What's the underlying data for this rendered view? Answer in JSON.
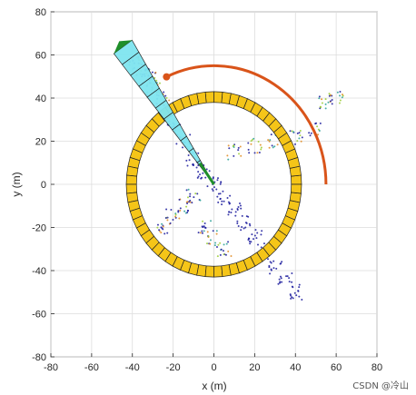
{
  "chart_data": {
    "type": "scatter",
    "xlabel": "x (m)",
    "ylabel": "y (m)",
    "xlim": [
      -80,
      80
    ],
    "ylim": [
      -80,
      80
    ],
    "xticks": [
      -80,
      -60,
      -40,
      -20,
      0,
      20,
      40,
      60,
      80
    ],
    "yticks": [
      -80,
      -60,
      -40,
      -20,
      0,
      20,
      40,
      60,
      80
    ],
    "grid": true,
    "ring": {
      "center": [
        0,
        0
      ],
      "inner_radius": 38,
      "outer_radius": 43,
      "sectors": 64,
      "color": "#f5c518"
    },
    "beam": {
      "azimuth_deg": 125,
      "half_width_deg": 4,
      "range_start": 0,
      "range_end": 78,
      "range_bins": 12,
      "color": "#7fe5f0",
      "highlight_start": 22,
      "highlight_end": 27,
      "highlight_color": "#000000",
      "tip_color": "#1f8f2a"
    },
    "scan_arc": {
      "radius": 55,
      "start_deg": 0,
      "end_deg": 115,
      "color": "#d9541a"
    },
    "point_cloud_clusters": [
      {
        "name": "",
        "points": [
          [
            -20,
            28
          ],
          [
            -15,
            20
          ],
          [
            -10,
            12
          ],
          [
            -5,
            6
          ],
          [
            0,
            0
          ],
          [
            5,
            -6
          ],
          [
            10,
            -12
          ],
          [
            15,
            -18
          ],
          [
            20,
            -24
          ],
          [
            25,
            -30
          ],
          [
            30,
            -38
          ],
          [
            35,
            -44
          ],
          [
            40,
            -50
          ]
        ]
      },
      {
        "name": "",
        "points": [
          [
            -35,
            50
          ],
          [
            -30,
            44
          ],
          [
            -25,
            38
          ],
          [
            -28,
            45
          ],
          [
            -32,
            52
          ],
          [
            -38,
            56
          ]
        ]
      },
      {
        "name": "",
        "points": [
          [
            10,
            15
          ],
          [
            20,
            18
          ],
          [
            30,
            20
          ],
          [
            40,
            22
          ],
          [
            50,
            25
          ],
          [
            55,
            38
          ],
          [
            60,
            40
          ]
        ]
      },
      {
        "name": "",
        "points": [
          [
            -10,
            -5
          ],
          [
            -15,
            -10
          ],
          [
            -20,
            -15
          ],
          [
            -25,
            -20
          ],
          [
            -5,
            -20
          ],
          [
            0,
            -25
          ],
          [
            5,
            -30
          ]
        ]
      }
    ],
    "colors": {
      "ring_fill": "#f5c518",
      "ring_stroke": "#222222",
      "beam_fill": "#7fe5f0",
      "arc": "#d9541a",
      "cloud_dark": "#1a1a9c",
      "cloud_teal": "#2aa198",
      "cloud_green": "#9acd32",
      "cloud_orange": "#e08a1e"
    }
  },
  "watermark": "CSDN @冷山"
}
